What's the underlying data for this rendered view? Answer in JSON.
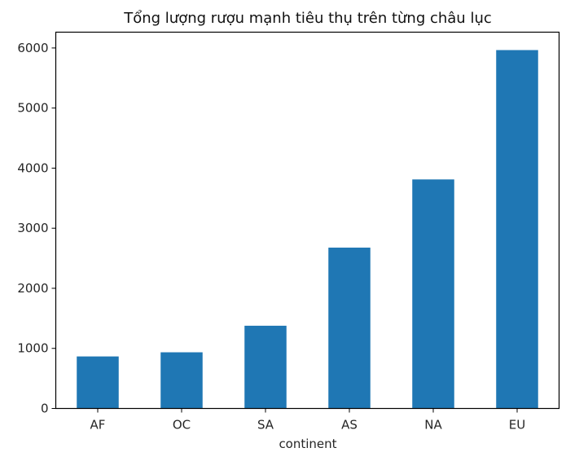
{
  "chart_data": {
    "type": "bar",
    "title": "Tổng lượng rượu mạnh tiêu thụ trên từng châu lục",
    "xlabel": "continent",
    "ylabel": "",
    "categories": [
      "AF",
      "OC",
      "SA",
      "AS",
      "NA",
      "EU"
    ],
    "values": [
      866,
      935,
      1377,
      2677,
      3812,
      5965
    ],
    "ylim": [
      0,
      6263
    ],
    "yticks": [
      0,
      1000,
      2000,
      3000,
      4000,
      5000,
      6000
    ],
    "grid": false,
    "legend": "none",
    "bar_color": "#1f77b4"
  }
}
